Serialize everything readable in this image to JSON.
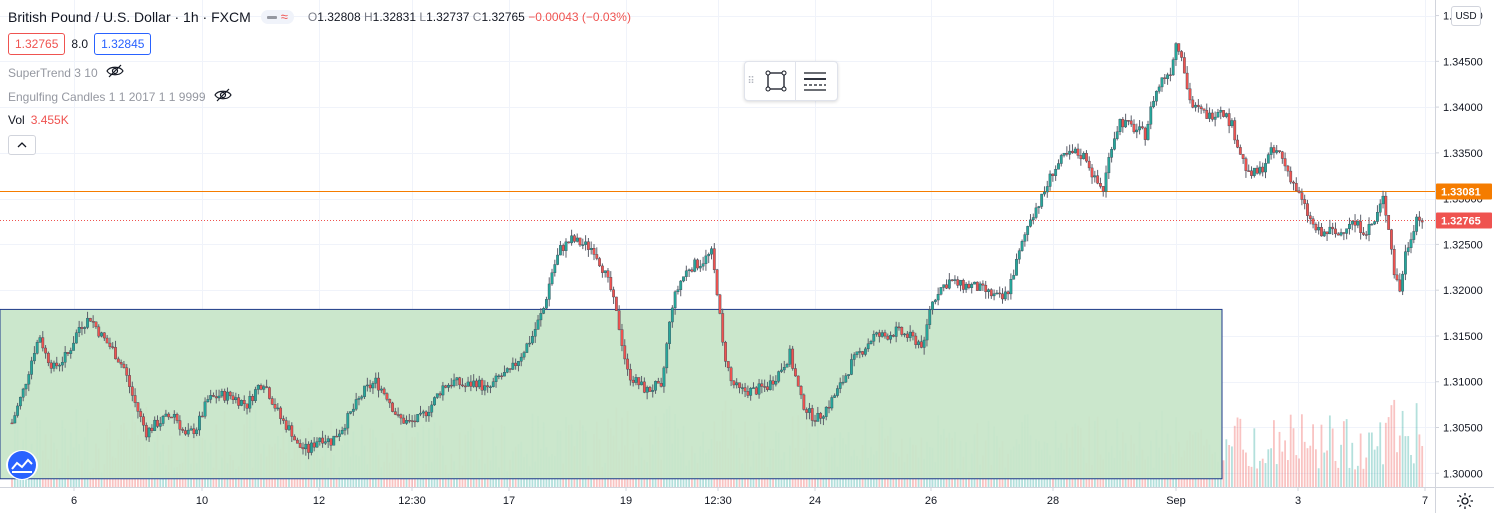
{
  "symbol": {
    "title": "British Pound / U.S. Dollar · 1h · FXCM",
    "open_label": "O",
    "open": "1.32808",
    "high_label": "H",
    "high": "1.32831",
    "low_label": "L",
    "low": "1.32737",
    "close_label": "C",
    "close": "1.32765",
    "change": "−0.00043 (−0.03%)"
  },
  "quote": {
    "bid": "1.32765",
    "spread": "8.0",
    "ask": "1.32845"
  },
  "indicators": [
    {
      "name": "SuperTrend 3 10"
    },
    {
      "name": "Engulfing Candles 1 1 2017 1 1 9999"
    }
  ],
  "volume": {
    "label": "Vol",
    "value": "3.455K"
  },
  "price_scale": {
    "currency": "USD",
    "ticks": [
      "1.35000",
      "1.34500",
      "1.34000",
      "1.33500",
      "1.33000",
      "1.32500",
      "1.32000",
      "1.31500",
      "1.31000",
      "1.30500",
      "1.30000"
    ],
    "horizontal_line_label": "1.33081",
    "last_price_label": "1.32765"
  },
  "time_scale": {
    "ticks": [
      "6",
      "10",
      "12",
      "12:30",
      "17",
      "19",
      "12:30",
      "24",
      "26",
      "28",
      "Sep",
      "3",
      "7"
    ]
  },
  "colors": {
    "up": "#26a69a",
    "down": "#ef5350",
    "wick": "#3d4a57",
    "horizontal_line": "#f57c00",
    "last_price": "#ef5350",
    "rectangle_fill": "#c8e6c9",
    "rectangle_border": "#1e3a8a",
    "grid": "#f0f3fa"
  },
  "toolbar": {
    "icons": [
      "drag-handle-icon",
      "rectangle-icon",
      "line-settings-icon"
    ]
  },
  "chart_data": {
    "type": "candlestick",
    "ylim": [
      1.2985,
      1.3517
    ],
    "horizontal_line": 1.33081,
    "last_price": 1.32765,
    "rectangle": {
      "y_top": 1.3179,
      "y_bottom": 1.2994
    },
    "price_path": [
      [
        0,
        1.3055
      ],
      [
        4,
        1.309
      ],
      [
        8,
        1.3135
      ],
      [
        10,
        1.315
      ],
      [
        12,
        1.313
      ],
      [
        15,
        1.3115
      ],
      [
        20,
        1.313
      ],
      [
        24,
        1.316
      ],
      [
        28,
        1.317
      ],
      [
        32,
        1.315
      ],
      [
        36,
        1.3135
      ],
      [
        40,
        1.3115
      ],
      [
        43,
        1.3085
      ],
      [
        46,
        1.306
      ],
      [
        48,
        1.3045
      ],
      [
        52,
        1.3055
      ],
      [
        58,
        1.3065
      ],
      [
        62,
        1.304
      ],
      [
        66,
        1.305
      ],
      [
        70,
        1.308
      ],
      [
        74,
        1.3085
      ],
      [
        78,
        1.3085
      ],
      [
        84,
        1.3075
      ],
      [
        88,
        1.3095
      ],
      [
        90,
        1.31
      ],
      [
        93,
        1.308
      ],
      [
        96,
        1.306
      ],
      [
        100,
        1.3045
      ],
      [
        102,
        1.303
      ],
      [
        106,
        1.3025
      ],
      [
        110,
        1.304
      ],
      [
        114,
        1.3035
      ],
      [
        118,
        1.305
      ],
      [
        122,
        1.307
      ],
      [
        126,
        1.309
      ],
      [
        130,
        1.31
      ],
      [
        134,
        1.3085
      ],
      [
        138,
        1.306
      ],
      [
        142,
        1.3055
      ],
      [
        146,
        1.306
      ],
      [
        150,
        1.3075
      ],
      [
        154,
        1.3095
      ],
      [
        158,
        1.31
      ],
      [
        162,
        1.3095
      ],
      [
        166,
        1.31
      ],
      [
        170,
        1.309
      ],
      [
        174,
        1.3105
      ],
      [
        178,
        1.311
      ],
      [
        182,
        1.313
      ],
      [
        186,
        1.315
      ],
      [
        190,
        1.318
      ],
      [
        193,
        1.322
      ],
      [
        196,
        1.3245
      ],
      [
        200,
        1.3255
      ],
      [
        204,
        1.325
      ],
      [
        208,
        1.3245
      ],
      [
        211,
        1.3225
      ],
      [
        214,
        1.32
      ],
      [
        217,
        1.316
      ],
      [
        220,
        1.311
      ],
      [
        223,
        1.31
      ],
      [
        227,
        1.309
      ],
      [
        230,
        1.3095
      ],
      [
        232,
        1.309
      ],
      [
        234,
        1.314
      ],
      [
        236,
        1.3185
      ],
      [
        239,
        1.321
      ],
      [
        242,
        1.3225
      ],
      [
        246,
        1.323
      ],
      [
        250,
        1.324
      ],
      [
        252,
        1.32
      ],
      [
        254,
        1.314
      ],
      [
        257,
        1.31
      ],
      [
        260,
        1.309
      ],
      [
        265,
        1.309
      ],
      [
        270,
        1.3095
      ],
      [
        274,
        1.311
      ],
      [
        278,
        1.313
      ],
      [
        282,
        1.308
      ],
      [
        285,
        1.3065
      ],
      [
        288,
        1.306
      ],
      [
        292,
        1.3075
      ],
      [
        296,
        1.3095
      ],
      [
        300,
        1.312
      ],
      [
        304,
        1.3135
      ],
      [
        308,
        1.315
      ],
      [
        312,
        1.315
      ],
      [
        316,
        1.3155
      ],
      [
        320,
        1.315
      ],
      [
        323,
        1.3145
      ],
      [
        326,
        1.314
      ],
      [
        328,
        1.318
      ],
      [
        331,
        1.32
      ],
      [
        335,
        1.321
      ],
      [
        339,
        1.3205
      ],
      [
        343,
        1.3205
      ],
      [
        347,
        1.32
      ],
      [
        350,
        1.3195
      ],
      [
        354,
        1.319
      ],
      [
        356,
        1.32
      ],
      [
        360,
        1.324
      ],
      [
        364,
        1.328
      ],
      [
        368,
        1.33
      ],
      [
        372,
        1.333
      ],
      [
        376,
        1.3345
      ],
      [
        380,
        1.335
      ],
      [
        384,
        1.3345
      ],
      [
        387,
        1.332
      ],
      [
        390,
        1.331
      ],
      [
        393,
        1.336
      ],
      [
        396,
        1.3385
      ],
      [
        399,
        1.338
      ],
      [
        402,
        1.3375
      ],
      [
        405,
        1.337
      ],
      [
        408,
        1.341
      ],
      [
        411,
        1.343
      ],
      [
        414,
        1.344
      ],
      [
        416,
        1.347
      ],
      [
        418,
        1.346
      ],
      [
        420,
        1.342
      ],
      [
        422,
        1.34
      ],
      [
        425,
        1.3395
      ],
      [
        428,
        1.339
      ],
      [
        432,
        1.34
      ],
      [
        436,
        1.338
      ],
      [
        439,
        1.335
      ],
      [
        442,
        1.3325
      ],
      [
        446,
        1.333
      ],
      [
        450,
        1.335
      ],
      [
        453,
        1.335
      ],
      [
        456,
        1.333
      ],
      [
        459,
        1.331
      ],
      [
        462,
        1.329
      ],
      [
        465,
        1.327
      ],
      [
        468,
        1.326
      ],
      [
        471,
        1.3265
      ],
      [
        474,
        1.326
      ],
      [
        478,
        1.3275
      ],
      [
        481,
        1.327
      ],
      [
        484,
        1.3265
      ],
      [
        487,
        1.3275
      ],
      [
        490,
        1.33
      ],
      [
        492,
        1.327
      ],
      [
        494,
        1.322
      ],
      [
        496,
        1.32
      ],
      [
        498,
        1.324
      ],
      [
        500,
        1.326
      ],
      [
        502,
        1.328
      ],
      [
        504,
        1.32765
      ]
    ]
  }
}
